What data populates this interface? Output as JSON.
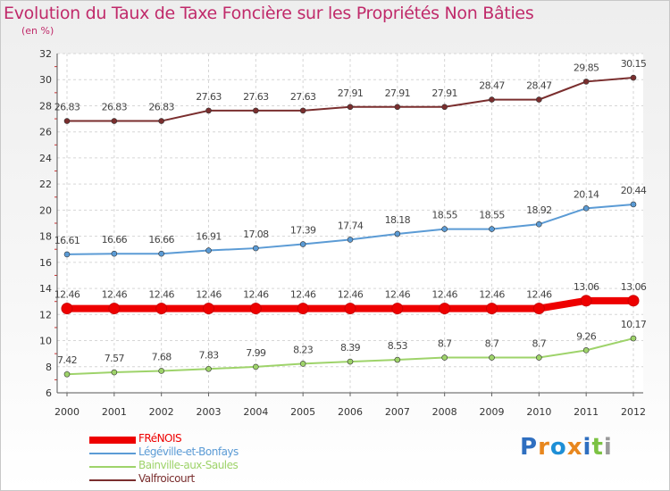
{
  "title": "Evolution du Taux de Taxe Foncière sur les Propriétés Non Bâties",
  "unit_label": "(en %)",
  "brand": {
    "letters": [
      "P",
      "r",
      "o",
      "x",
      "i",
      "t",
      "i"
    ],
    "colors": [
      "#2f6fc0",
      "#e8871e",
      "#1e8fd6",
      "#e8871e",
      "#2f6fc0",
      "#7cc243",
      "#9a9a9a"
    ]
  },
  "chart_data": {
    "type": "line",
    "title": "Evolution du Taux de Taxe Foncière sur les Propriétés Non Bâties",
    "ylabel": "(en %)",
    "xlabel": "",
    "x": [
      "2000",
      "2001",
      "2002",
      "2003",
      "2004",
      "2005",
      "2006",
      "2007",
      "2008",
      "2009",
      "2010",
      "2011",
      "2012"
    ],
    "ylim": [
      6,
      32
    ],
    "yticks": [
      "6",
      "8",
      "10",
      "12",
      "14",
      "16",
      "18",
      "20",
      "22",
      "24",
      "26",
      "28",
      "30",
      "32"
    ],
    "grid": true,
    "legend_position": "bottom-left",
    "series": [
      {
        "name": "FRéNOIS",
        "color": "#ee0000",
        "values": [
          12.46,
          12.46,
          12.46,
          12.46,
          12.46,
          12.46,
          12.46,
          12.46,
          12.46,
          12.46,
          12.46,
          13.06,
          13.06
        ],
        "labels": [
          "12.46",
          "12.46",
          "12.46",
          "12.46",
          "12.46",
          "12.46",
          "12.46",
          "12.46",
          "12.46",
          "12.46",
          "12.46",
          "13.06",
          "13.06"
        ],
        "emphasis": true
      },
      {
        "name": "Légéville-et-Bonfays",
        "color": "#5b9bd5",
        "values": [
          16.61,
          16.66,
          16.66,
          16.91,
          17.08,
          17.39,
          17.74,
          18.18,
          18.55,
          18.55,
          18.92,
          20.14,
          20.44
        ],
        "labels": [
          "16.61",
          "16.66",
          "16.66",
          "16.91",
          "17.08",
          "17.39",
          "17.74",
          "18.18",
          "18.55",
          "18.55",
          "18.92",
          "20.14",
          "20.44"
        ],
        "emphasis": false
      },
      {
        "name": "Bainville-aux-Saules",
        "color": "#9ed36a",
        "values": [
          7.42,
          7.57,
          7.68,
          7.83,
          7.99,
          8.23,
          8.39,
          8.53,
          8.7,
          8.7,
          8.7,
          9.26,
          10.17
        ],
        "labels": [
          "7.42",
          "7.57",
          "7.68",
          "7.83",
          "7.99",
          "8.23",
          "8.39",
          "8.53",
          "8.7",
          "8.7",
          "8.7",
          "9.26",
          "10.17"
        ],
        "emphasis": false
      },
      {
        "name": "Valfroicourt",
        "color": "#7a2e2e",
        "values": [
          26.83,
          26.83,
          26.83,
          27.63,
          27.63,
          27.63,
          27.91,
          27.91,
          27.91,
          28.47,
          28.47,
          29.85,
          30.15
        ],
        "labels": [
          "26.83",
          "26.83",
          "26.83",
          "27.63",
          "27.63",
          "27.63",
          "27.91",
          "27.91",
          "27.91",
          "28.47",
          "28.47",
          "29.85",
          "30.15"
        ],
        "emphasis": false
      }
    ]
  }
}
